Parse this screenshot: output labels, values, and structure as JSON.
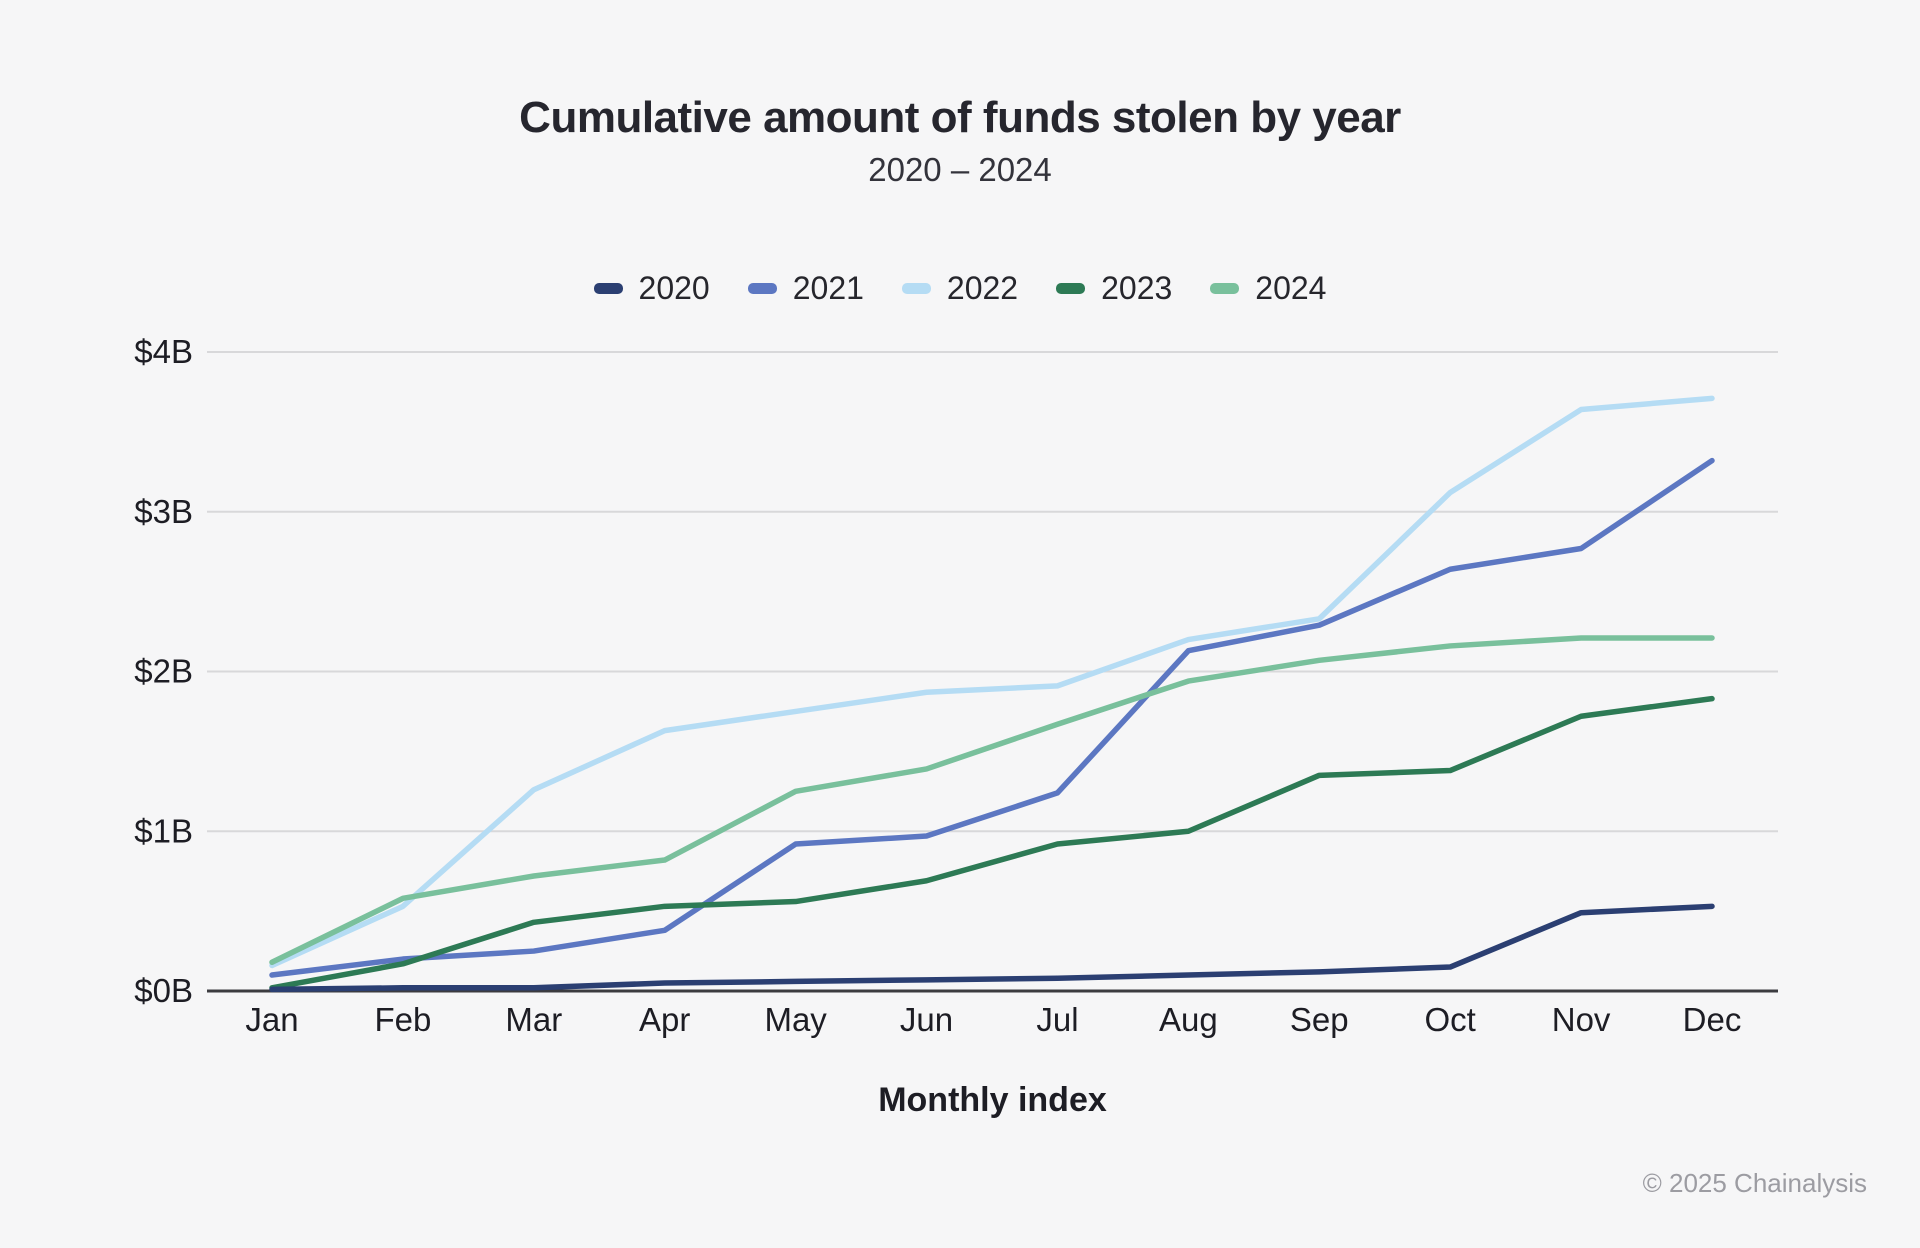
{
  "footer": {
    "text": "© 2025 Chainalysis"
  },
  "colors": {
    "background": "#f6f6f7",
    "grid": "#d8d8da",
    "axis": "#3c3c40",
    "tick_text": "#1d1d24",
    "title_text": "#26262e",
    "footer_text": "#9c9ca2"
  },
  "chart_data": {
    "type": "line",
    "title": "Cumulative amount of funds stolen by year",
    "subtitle": "2020 – 2024",
    "xlabel": "Monthly index",
    "ylabel": "",
    "categories": [
      "Jan",
      "Feb",
      "Mar",
      "Apr",
      "May",
      "Jun",
      "Jul",
      "Aug",
      "Sep",
      "Oct",
      "Nov",
      "Dec"
    ],
    "y_ticks": [
      "$0B",
      "$1B",
      "$2B",
      "$3B",
      "$4B"
    ],
    "ylim": [
      0,
      4
    ],
    "grid": "horizontal",
    "legend_position": "top",
    "series": [
      {
        "name": "2020",
        "color": "#2b3f72",
        "values": [
          0.01,
          0.02,
          0.02,
          0.05,
          0.06,
          0.07,
          0.08,
          0.1,
          0.12,
          0.15,
          0.49,
          0.53
        ]
      },
      {
        "name": "2021",
        "color": "#5c77c2",
        "values": [
          0.1,
          0.2,
          0.25,
          0.38,
          0.92,
          0.97,
          1.24,
          2.13,
          2.29,
          2.64,
          2.77,
          3.32
        ]
      },
      {
        "name": "2022",
        "color": "#b5dcf4",
        "values": [
          0.16,
          0.53,
          1.26,
          1.63,
          1.75,
          1.87,
          1.91,
          2.2,
          2.33,
          3.12,
          3.64,
          3.71
        ]
      },
      {
        "name": "2023",
        "color": "#2d7a55",
        "values": [
          0.02,
          0.17,
          0.43,
          0.53,
          0.56,
          0.69,
          0.92,
          1.0,
          1.35,
          1.38,
          1.72,
          1.83
        ]
      },
      {
        "name": "2024",
        "color": "#79c09c",
        "values": [
          0.18,
          0.58,
          0.72,
          0.82,
          1.25,
          1.39,
          1.67,
          1.94,
          2.07,
          2.16,
          2.21,
          2.21
        ]
      }
    ],
    "z_order": [
      "2022",
      "2021",
      "2023",
      "2024",
      "2020"
    ]
  }
}
